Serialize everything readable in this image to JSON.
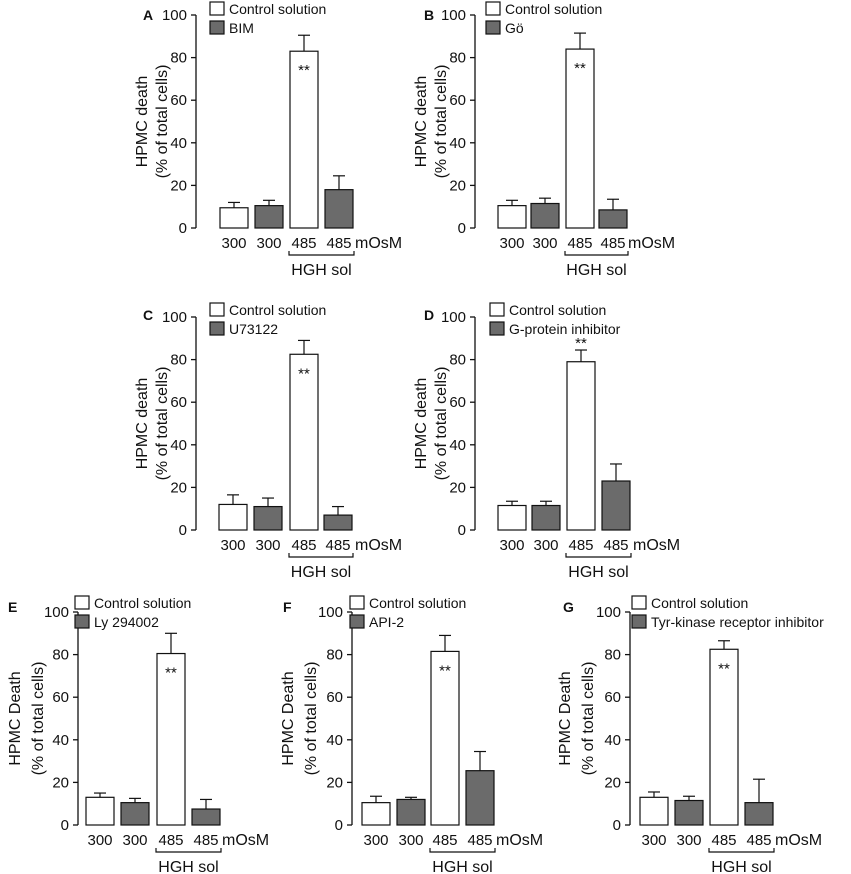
{
  "colors": {
    "control": "#ffffff",
    "treatment": "#6b6b6b",
    "ink": "#111111"
  },
  "chart_data": [
    {
      "panel": "A",
      "type": "bar",
      "ylabel": [
        "HPMC death",
        "(% of total cells)"
      ],
      "ylim": [
        0,
        100
      ],
      "yticks": [
        0,
        20,
        40,
        60,
        80,
        100
      ],
      "categories": [
        "300",
        "300",
        "485",
        "485"
      ],
      "unit": "mOsM",
      "group_label": "HGH sol",
      "legend": [
        "Control solution",
        "BIM"
      ],
      "values": [
        9.5,
        10.5,
        83,
        18
      ],
      "errors": [
        2.5,
        2.5,
        7.5,
        6.5
      ],
      "series_index": [
        0,
        1,
        0,
        1
      ],
      "annotations": [
        "",
        "",
        "**",
        ""
      ]
    },
    {
      "panel": "B",
      "type": "bar",
      "ylabel": [
        "HPMC death",
        "(% of total cells)"
      ],
      "ylim": [
        0,
        100
      ],
      "yticks": [
        0,
        20,
        40,
        60,
        80,
        100
      ],
      "categories": [
        "300",
        "300",
        "485",
        "485"
      ],
      "unit": "mOsM",
      "group_label": "HGH sol",
      "legend": [
        "Control solution",
        "Gö"
      ],
      "values": [
        10.5,
        11.5,
        84,
        8.5
      ],
      "errors": [
        2.5,
        2.5,
        7.5,
        5
      ],
      "series_index": [
        0,
        1,
        0,
        1
      ],
      "annotations": [
        "",
        "",
        "**",
        ""
      ]
    },
    {
      "panel": "C",
      "type": "bar",
      "ylabel": [
        "HPMC death",
        "(% of total cells)"
      ],
      "ylim": [
        0,
        100
      ],
      "yticks": [
        0,
        20,
        40,
        60,
        80,
        100
      ],
      "categories": [
        "300",
        "300",
        "485",
        "485"
      ],
      "unit": "mOsM",
      "group_label": "HGH sol",
      "legend": [
        "Control solution",
        "U73122"
      ],
      "values": [
        12,
        11,
        82.5,
        7
      ],
      "errors": [
        4.5,
        4,
        6.5,
        4
      ],
      "series_index": [
        0,
        1,
        0,
        1
      ],
      "annotations": [
        "",
        "",
        "**",
        ""
      ]
    },
    {
      "panel": "D",
      "type": "bar",
      "ylabel": [
        "HPMC death",
        "(% of total cells)"
      ],
      "ylim": [
        0,
        100
      ],
      "yticks": [
        0,
        20,
        40,
        60,
        80,
        100
      ],
      "categories": [
        "300",
        "300",
        "485",
        "485"
      ],
      "unit": "mOsM",
      "group_label": "HGH sol",
      "legend": [
        "Control solution",
        "G-protein inhibitor"
      ],
      "values": [
        11.5,
        11.5,
        79,
        23
      ],
      "errors": [
        2,
        2,
        5.5,
        8
      ],
      "series_index": [
        0,
        1,
        0,
        1
      ],
      "annotations": [
        "",
        "",
        "**",
        ""
      ]
    },
    {
      "panel": "E",
      "type": "bar",
      "ylabel": [
        "HPMC Death",
        "(% of total cells)"
      ],
      "ylim": [
        0,
        100
      ],
      "yticks": [
        0,
        20,
        40,
        60,
        80,
        100
      ],
      "categories": [
        "300",
        "300",
        "485",
        "485"
      ],
      "unit": "mOsM",
      "group_label": "HGH sol",
      "legend": [
        "Control solution",
        "Ly 294002"
      ],
      "values": [
        13,
        10.5,
        80.5,
        7.5
      ],
      "errors": [
        2,
        2,
        9.5,
        4.5
      ],
      "series_index": [
        0,
        1,
        0,
        1
      ],
      "annotations": [
        "",
        "",
        "**",
        ""
      ]
    },
    {
      "panel": "F",
      "type": "bar",
      "ylabel": [
        "HPMC Death",
        "(% of total cells)"
      ],
      "ylim": [
        0,
        100
      ],
      "yticks": [
        0,
        20,
        40,
        60,
        80,
        100
      ],
      "categories": [
        "300",
        "300",
        "485",
        "485"
      ],
      "unit": "mOsM",
      "group_label": "HGH sol",
      "legend": [
        "Control solution",
        "API-2"
      ],
      "values": [
        10.5,
        12,
        81.5,
        25.5
      ],
      "errors": [
        3,
        1,
        7.5,
        9
      ],
      "series_index": [
        0,
        1,
        0,
        1
      ],
      "annotations": [
        "",
        "",
        "**",
        ""
      ]
    },
    {
      "panel": "G",
      "type": "bar",
      "ylabel": [
        "HPMC Death",
        "(% of total cells)"
      ],
      "ylim": [
        0,
        100
      ],
      "yticks": [
        0,
        20,
        40,
        60,
        80,
        100
      ],
      "categories": [
        "300",
        "300",
        "485",
        "485"
      ],
      "unit": "mOsM",
      "group_label": "HGH sol",
      "legend": [
        "Control solution",
        "Tyr-kinase receptor inhibitor"
      ],
      "values": [
        13,
        11.5,
        82.5,
        10.5
      ],
      "errors": [
        2.5,
        2,
        4,
        11
      ],
      "series_index": [
        0,
        1,
        0,
        1
      ],
      "annotations": [
        "",
        "",
        "**",
        ""
      ]
    }
  ]
}
